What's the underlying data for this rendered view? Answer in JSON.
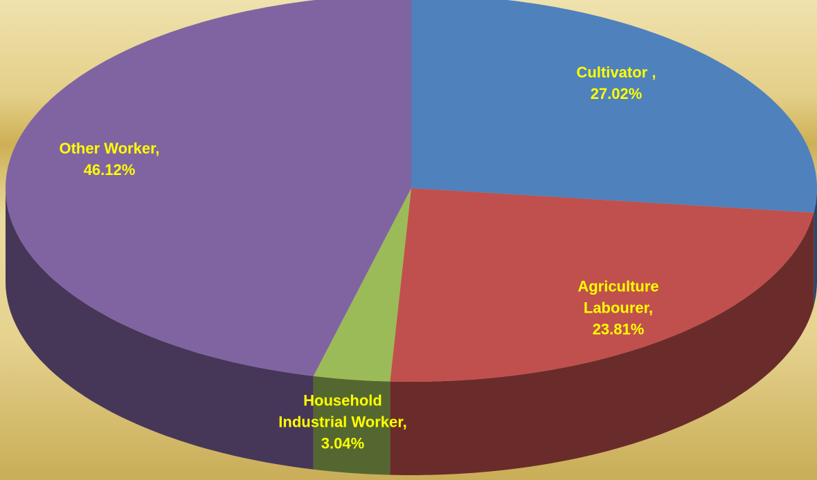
{
  "chart_data": {
    "type": "pie3d",
    "categories": [
      "Cultivator ,",
      "Agriculture Labourer,",
      "Household Industrial Worker,",
      "Other Worker,"
    ],
    "values": [
      27.02,
      23.81,
      3.04,
      46.12
    ],
    "value_labels": [
      "27.02%",
      "23.81%",
      "3.04%",
      "46.12%"
    ],
    "colors": [
      "#4f81bd",
      "#c0504d",
      "#9bbb59",
      "#8064a2"
    ]
  }
}
